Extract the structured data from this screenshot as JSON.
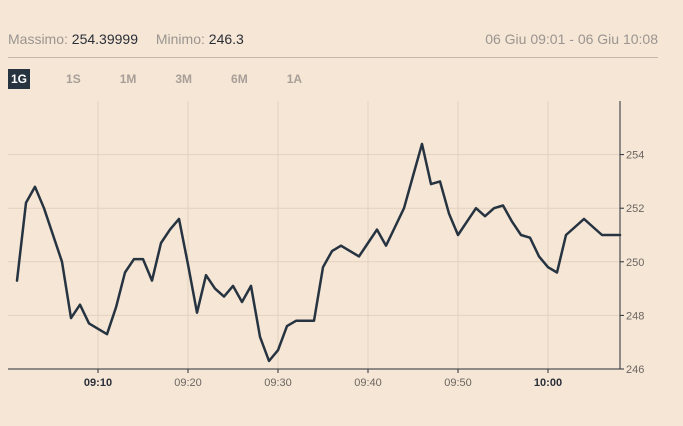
{
  "header": {
    "max_label": "Massimo:",
    "max_value": "254.39999",
    "min_label": "Minimo:",
    "min_value": "246.3",
    "range": "06 Giu 09:01 - 06 Giu 10:08"
  },
  "tabs": [
    {
      "label": "1G",
      "active": true
    },
    {
      "label": "1S",
      "active": false
    },
    {
      "label": "1M",
      "active": false
    },
    {
      "label": "3M",
      "active": false
    },
    {
      "label": "6M",
      "active": false
    },
    {
      "label": "1A",
      "active": false
    }
  ],
  "chart_data": {
    "type": "line",
    "x_tick_labels": [
      {
        "label": "09:10",
        "minute": 10,
        "bold": true
      },
      {
        "label": "09:20",
        "minute": 20,
        "bold": false
      },
      {
        "label": "09:30",
        "minute": 30,
        "bold": false
      },
      {
        "label": "09:40",
        "minute": 40,
        "bold": false
      },
      {
        "label": "09:50",
        "minute": 50,
        "bold": false
      },
      {
        "label": "10:00",
        "minute": 60,
        "bold": true
      }
    ],
    "y_tick_labels": [
      {
        "label": "246",
        "value": 246
      },
      {
        "label": "248",
        "value": 248
      },
      {
        "label": "250",
        "value": 250
      },
      {
        "label": "252",
        "value": 252
      },
      {
        "label": "254",
        "value": 254
      }
    ],
    "xlim": [
      "09:00",
      "10:08"
    ],
    "ylim": [
      246,
      256
    ],
    "grid": true,
    "y_axis_position": "right",
    "series": [
      {
        "color": "#263340",
        "x": [
          "09:01",
          "09:02",
          "09:03",
          "09:04",
          "09:05",
          "09:06",
          "09:07",
          "09:08",
          "09:09",
          "09:10",
          "09:11",
          "09:12",
          "09:13",
          "09:14",
          "09:15",
          "09:16",
          "09:17",
          "09:18",
          "09:19",
          "09:20",
          "09:21",
          "09:22",
          "09:23",
          "09:24",
          "09:25",
          "09:26",
          "09:27",
          "09:28",
          "09:29",
          "09:30",
          "09:31",
          "09:32",
          "09:33",
          "09:34",
          "09:35",
          "09:36",
          "09:37",
          "09:38",
          "09:39",
          "09:40",
          "09:41",
          "09:42",
          "09:43",
          "09:44",
          "09:45",
          "09:46",
          "09:47",
          "09:48",
          "09:49",
          "09:50",
          "09:51",
          "09:52",
          "09:53",
          "09:54",
          "09:55",
          "09:56",
          "09:57",
          "09:58",
          "09:59",
          "10:00",
          "10:01",
          "10:02",
          "10:03",
          "10:04",
          "10:05",
          "10:06",
          "10:07",
          "10:08"
        ],
        "values": [
          249.3,
          252.2,
          252.8,
          252.0,
          251.0,
          250.0,
          247.9,
          248.4,
          247.7,
          247.5,
          247.3,
          248.3,
          249.6,
          250.1,
          250.1,
          249.3,
          250.7,
          251.2,
          251.6,
          249.9,
          248.1,
          249.5,
          249.0,
          248.7,
          249.1,
          248.5,
          249.1,
          247.2,
          246.3,
          246.7,
          247.6,
          247.8,
          247.8,
          247.8,
          249.8,
          250.4,
          250.6,
          250.4,
          250.2,
          250.7,
          251.2,
          250.6,
          251.3,
          252.0,
          253.2,
          254.4,
          252.9,
          253.0,
          251.8,
          251.0,
          251.5,
          252.0,
          251.7,
          252.0,
          252.1,
          251.5,
          251.0,
          250.9,
          250.2,
          249.8,
          249.6,
          251.0,
          251.3,
          251.6,
          251.3,
          251.0,
          251.0,
          251.0
        ]
      }
    ]
  }
}
